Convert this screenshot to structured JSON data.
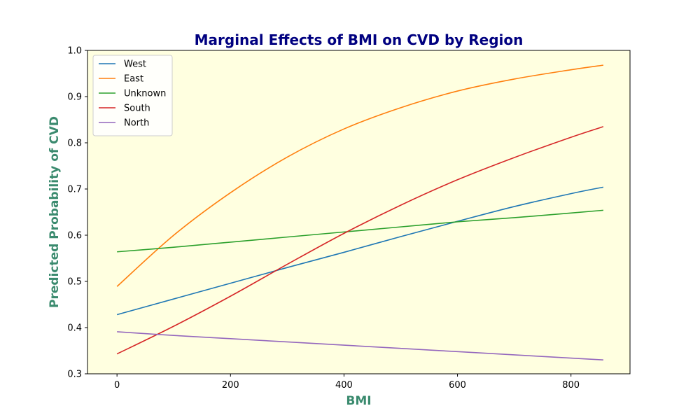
{
  "chart_data": {
    "type": "line",
    "title": "Marginal Effects of BMI on CVD by Region",
    "xlabel": "BMI",
    "ylabel": "Predicted Probability of CVD",
    "xlim": [
      -52,
      904
    ],
    "ylim": [
      0.3,
      1.0
    ],
    "xticks": [
      0,
      200,
      400,
      600,
      800
    ],
    "yticks": [
      0.3,
      0.4,
      0.5,
      0.6,
      0.7,
      0.8,
      0.9,
      1.0
    ],
    "x": [
      0,
      100,
      200,
      300,
      400,
      500,
      600,
      700,
      800,
      857
    ],
    "grid": false,
    "legend_position": "top-left",
    "series": [
      {
        "name": "West",
        "color": "#1f77b4",
        "values": [
          0.428,
          0.462,
          0.496,
          0.53,
          0.563,
          0.597,
          0.63,
          0.662,
          0.69,
          0.704
        ]
      },
      {
        "name": "East",
        "color": "#ff7f0e",
        "values": [
          0.489,
          0.6,
          0.692,
          0.769,
          0.83,
          0.876,
          0.912,
          0.938,
          0.958,
          0.968
        ]
      },
      {
        "name": "Unknown",
        "color": "#2ca02c",
        "values": [
          0.564,
          0.574,
          0.585,
          0.596,
          0.607,
          0.618,
          0.629,
          0.638,
          0.648,
          0.654
        ]
      },
      {
        "name": "South",
        "color": "#d62728",
        "values": [
          0.343,
          0.403,
          0.468,
          0.537,
          0.604,
          0.665,
          0.72,
          0.768,
          0.812,
          0.835
        ]
      },
      {
        "name": "North",
        "color": "#9467bd",
        "values": [
          0.391,
          0.383,
          0.376,
          0.369,
          0.362,
          0.355,
          0.348,
          0.341,
          0.334,
          0.33
        ]
      }
    ],
    "colors": {
      "plot_background": "#ffffe0",
      "title": "#000080",
      "axis_label": "#3a8a6e"
    }
  }
}
